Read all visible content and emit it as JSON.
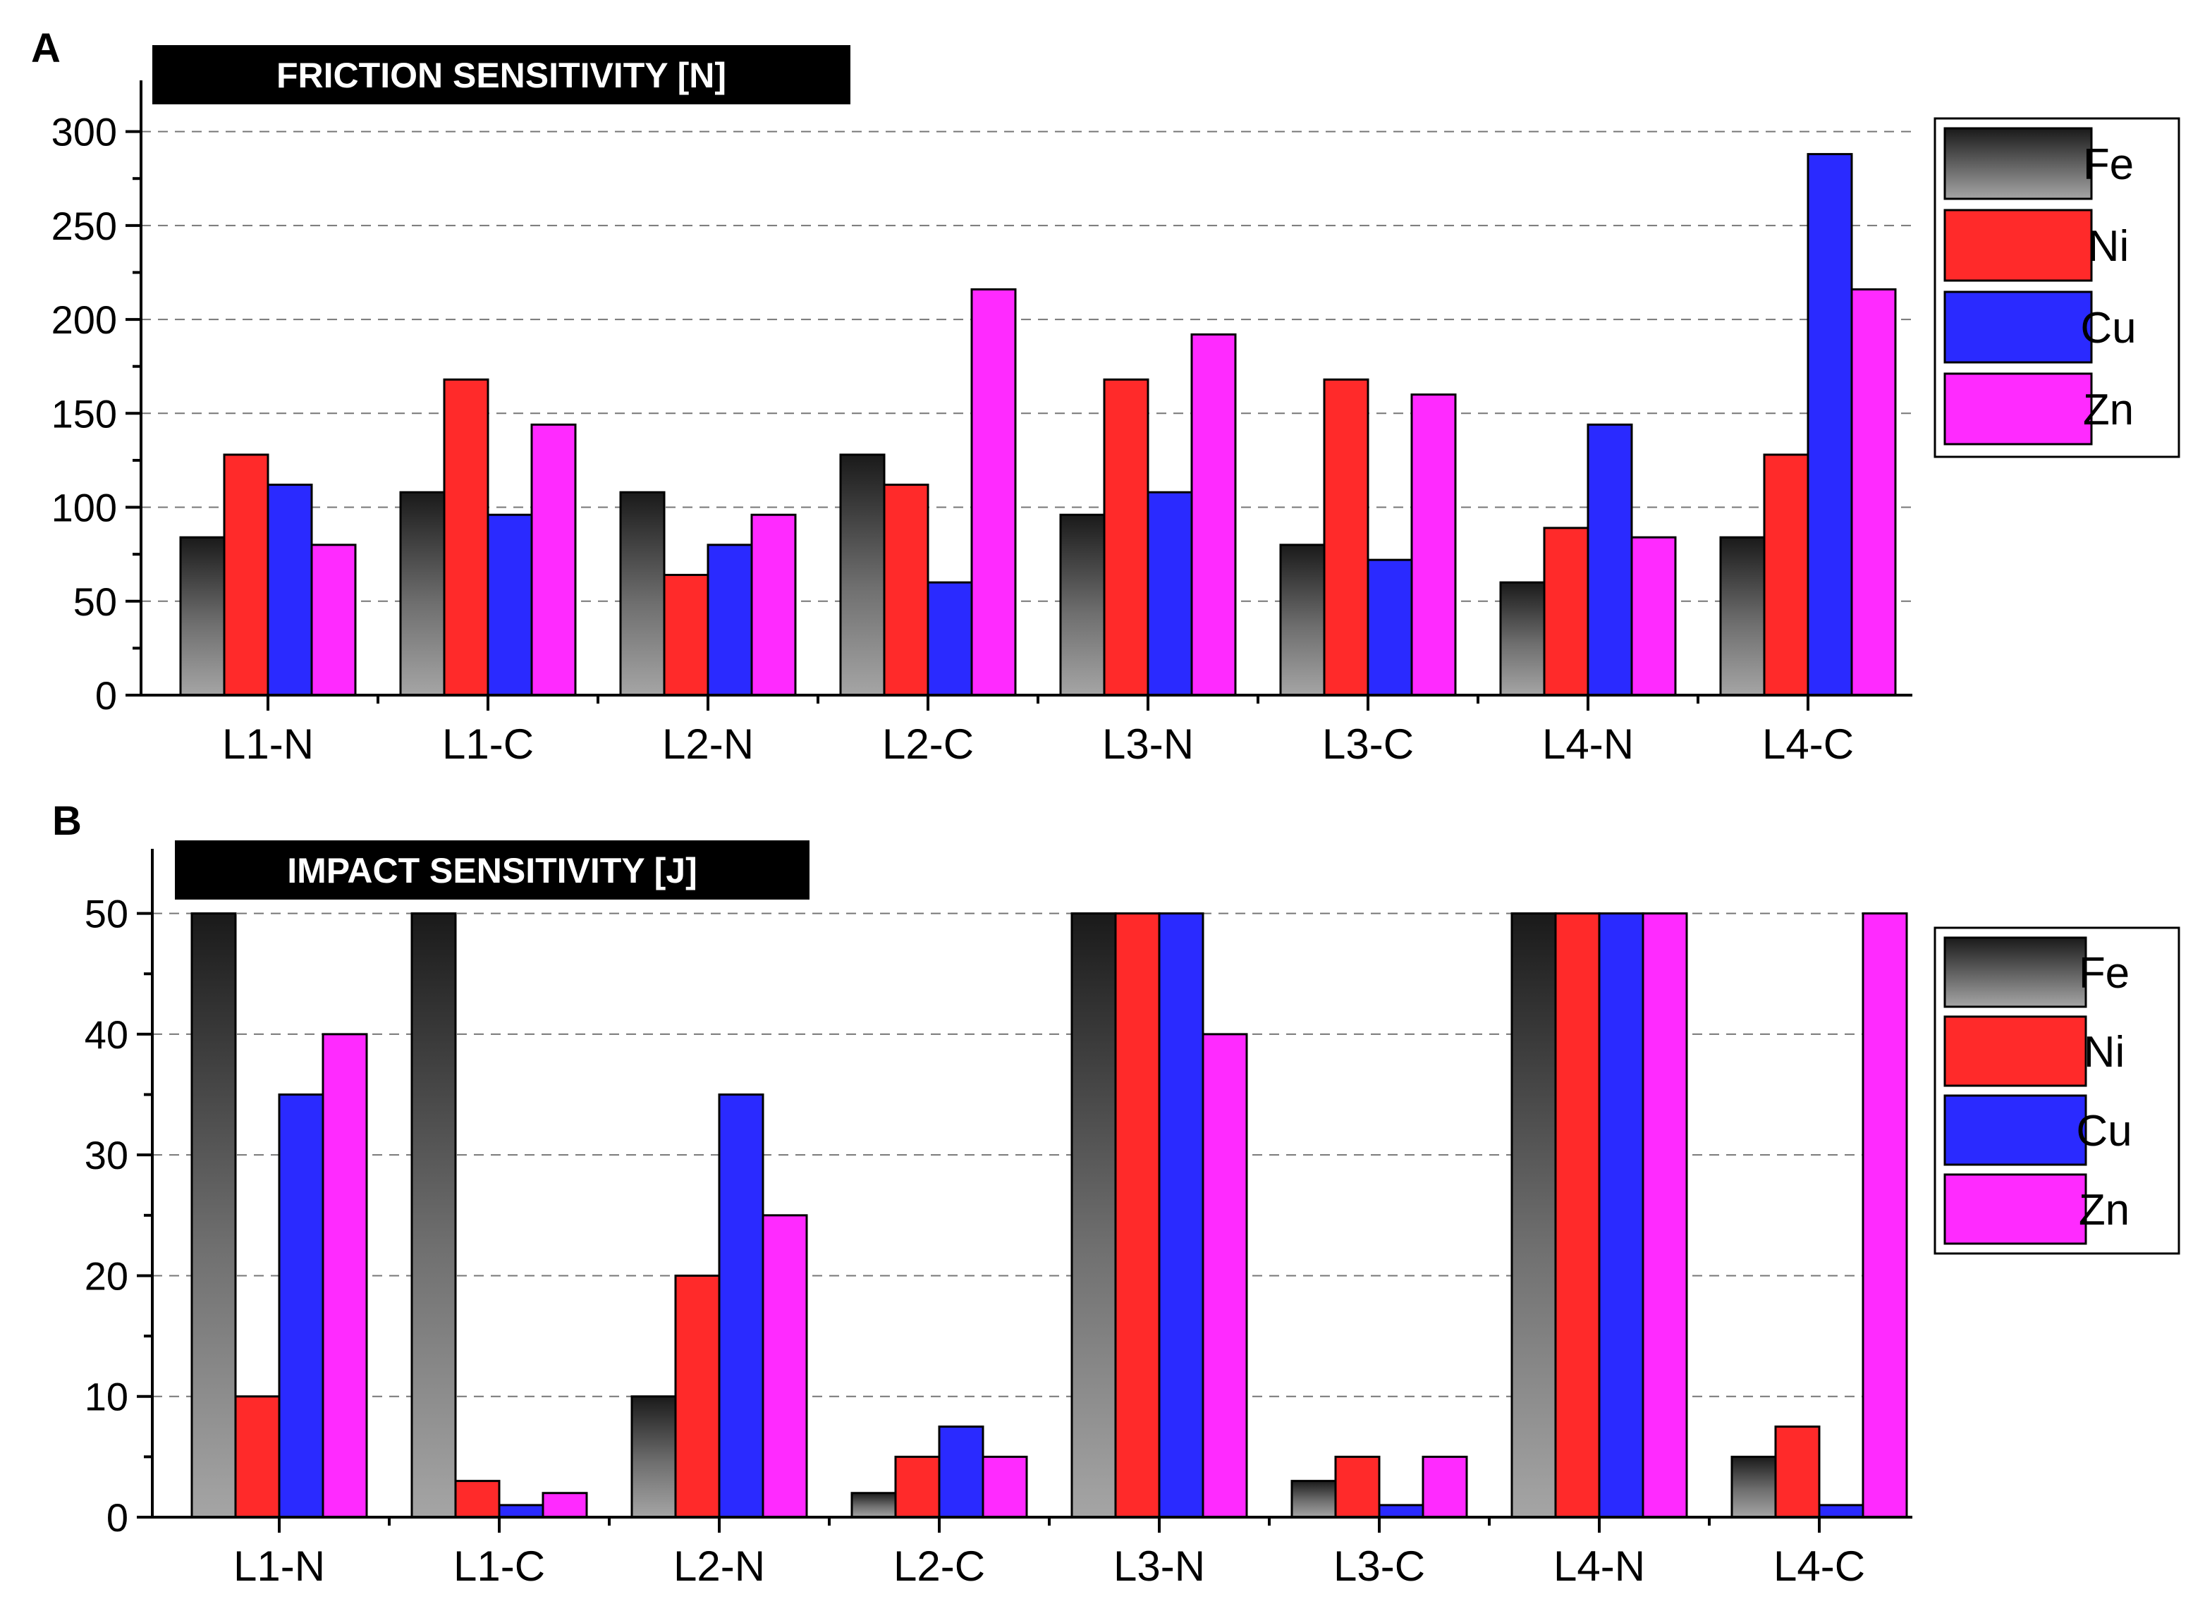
{
  "series_colors": {
    "Fe": "gradient-gray",
    "Ni": "#ff2a2a",
    "Cu": "#2a2aff",
    "Zn": "#ff2aff"
  },
  "chart_data": [
    {
      "type": "bar",
      "panel": "A",
      "title": "FRICTION SENSITIVITY [N]",
      "categories": [
        "L1-N",
        "L1-C",
        "L2-N",
        "L2-C",
        "L3-N",
        "L3-C",
        "L4-N",
        "L4-C"
      ],
      "series": [
        {
          "name": "Fe",
          "values": [
            84,
            108,
            108,
            128,
            96,
            80,
            60,
            84
          ]
        },
        {
          "name": "Ni",
          "values": [
            128,
            168,
            64,
            112,
            168,
            168,
            89,
            128
          ]
        },
        {
          "name": "Cu",
          "values": [
            112,
            96,
            80,
            60,
            108,
            72,
            144,
            288
          ]
        },
        {
          "name": "Zn",
          "values": [
            80,
            144,
            96,
            216,
            192,
            160,
            84,
            216
          ]
        }
      ],
      "yticks": [
        0,
        50,
        100,
        150,
        200,
        250,
        300
      ],
      "ylim": [
        0,
        325
      ],
      "grid": true,
      "legend": "top-right"
    },
    {
      "type": "bar",
      "panel": "B",
      "title": "IMPACT SENSITIVITY [J]",
      "categories": [
        "L1-N",
        "L1-C",
        "L2-N",
        "L2-C",
        "L3-N",
        "L3-C",
        "L4-N",
        "L4-C"
      ],
      "series": [
        {
          "name": "Fe",
          "values": [
            50,
            50,
            10,
            2,
            50,
            3,
            50,
            5
          ]
        },
        {
          "name": "Ni",
          "values": [
            10,
            3,
            20,
            5,
            50,
            5,
            50,
            7.5
          ]
        },
        {
          "name": "Cu",
          "values": [
            35,
            1,
            35,
            7.5,
            50,
            1,
            50,
            1
          ]
        },
        {
          "name": "Zn",
          "values": [
            40,
            2,
            25,
            5,
            40,
            5,
            50,
            50
          ]
        }
      ],
      "yticks": [
        0,
        10,
        20,
        30,
        40,
        50
      ],
      "ylim": [
        0,
        55
      ],
      "grid": true,
      "legend": "top-right"
    }
  ]
}
